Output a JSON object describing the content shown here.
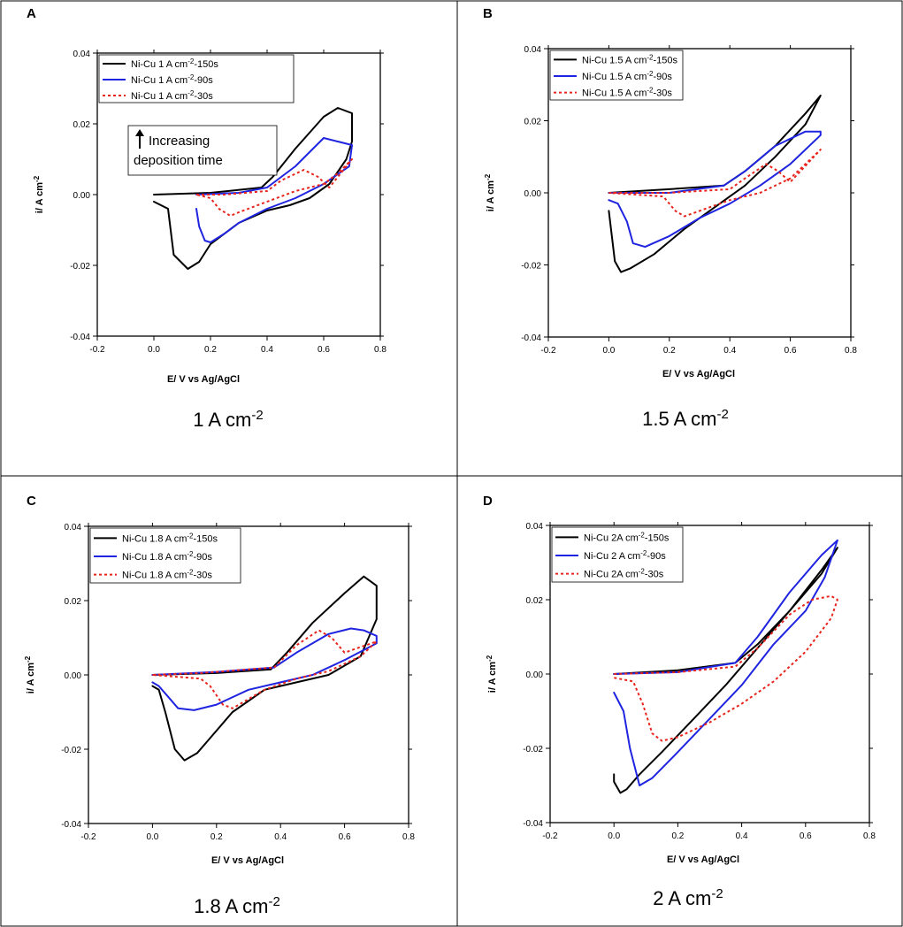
{
  "figure": {
    "cut_text": ""
  },
  "chart_data": [
    {
      "panel_letter": "A",
      "type": "line",
      "caption": "1 A cm",
      "caption_sup": "-2",
      "title": "",
      "xlabel": "E/ V vs Ag/AgCl",
      "ylabel": "i/ A cm",
      "ylabel_sup": "-2",
      "xlim": [
        -0.2,
        0.8
      ],
      "ylim": [
        -0.04,
        0.04
      ],
      "xticks": [
        "-0.2",
        "0.0",
        "0.2",
        "0.4",
        "0.6",
        "0.8"
      ],
      "yticks": [
        "-0.04",
        "-0.02",
        "0.00",
        "0.02",
        "0.04"
      ],
      "grid": false,
      "legend_position": "top-left",
      "annotation": {
        "line1": "Increasing",
        "line2": "deposition time"
      },
      "series": [
        {
          "name": "Ni-Cu 1 A cm-2-150s",
          "legend_pre": "Ni-Cu 1 A cm",
          "legend_sup": "-2",
          "legend_post": "-150s",
          "color": "#000000",
          "style": "solid",
          "x": [
            0.0,
            0.2,
            0.38,
            0.42,
            0.5,
            0.6,
            0.65,
            0.7,
            0.7,
            0.68,
            0.62,
            0.55,
            0.48,
            0.4,
            0.3,
            0.2,
            0.16,
            0.12,
            0.07,
            0.05,
            0.0
          ],
          "y": [
            0.0,
            0.0005,
            0.002,
            0.005,
            0.013,
            0.022,
            0.0245,
            0.023,
            0.015,
            0.01,
            0.003,
            -0.001,
            -0.003,
            -0.0045,
            -0.008,
            -0.014,
            -0.019,
            -0.021,
            -0.017,
            -0.004,
            -0.002
          ]
        },
        {
          "name": "Ni-Cu 1 A cm-2-90s",
          "legend_pre": "Ni-Cu 1 A cm",
          "legend_sup": "-2",
          "legend_post": "-90s",
          "color": "#1f24e0",
          "style": "solid",
          "x": [
            0.15,
            0.3,
            0.4,
            0.5,
            0.6,
            0.65,
            0.7,
            0.69,
            0.6,
            0.5,
            0.4,
            0.3,
            0.25,
            0.2,
            0.18,
            0.16,
            0.15
          ],
          "y": [
            0.0,
            0.0005,
            0.002,
            0.008,
            0.016,
            0.015,
            0.014,
            0.008,
            0.003,
            -0.001,
            -0.004,
            -0.008,
            -0.011,
            -0.0135,
            -0.013,
            -0.009,
            -0.004
          ]
        },
        {
          "name": "Ni-Cu 1 A cm-2-30s",
          "legend_pre": "Ni-Cu 1 A cm",
          "legend_sup": "-2",
          "legend_post": "-30s",
          "color": "#e8251d",
          "style": "dotted",
          "x": [
            0.15,
            0.25,
            0.4,
            0.45,
            0.53,
            0.58,
            0.62,
            0.7,
            0.65,
            0.6,
            0.5,
            0.4,
            0.3,
            0.27,
            0.23,
            0.2,
            0.15
          ],
          "y": [
            0.0,
            0.0,
            0.001,
            0.004,
            0.007,
            0.005,
            0.002,
            0.01,
            0.006,
            0.003,
            0.001,
            -0.002,
            -0.005,
            -0.006,
            -0.004,
            -0.001,
            0.0
          ]
        }
      ]
    },
    {
      "panel_letter": "B",
      "type": "line",
      "caption": "1.5 A cm",
      "caption_sup": "-2",
      "title": "",
      "xlabel": "E/ V vs Ag/AgCl",
      "ylabel": "i/ A cm",
      "ylabel_sup": "-2",
      "xlim": [
        -0.2,
        0.8
      ],
      "ylim": [
        -0.04,
        0.04
      ],
      "xticks": [
        "-0.2",
        "0.0",
        "0.2",
        "0.4",
        "0.6",
        "0.8"
      ],
      "yticks": [
        "-0.04",
        "-0.02",
        "0.00",
        "0.02",
        "0.04"
      ],
      "grid": false,
      "legend_position": "top-left",
      "series": [
        {
          "name": "Ni-Cu 1.5 A cm-2-150s",
          "legend_pre": "Ni-Cu 1.5 A cm",
          "legend_sup": "-2",
          "legend_post": "-150s",
          "color": "#000000",
          "style": "solid",
          "x": [
            0.0,
            0.2,
            0.38,
            0.45,
            0.55,
            0.65,
            0.7,
            0.65,
            0.55,
            0.45,
            0.35,
            0.25,
            0.15,
            0.07,
            0.04,
            0.02,
            0.01,
            0.0
          ],
          "y": [
            0.0,
            0.001,
            0.002,
            0.006,
            0.013,
            0.022,
            0.027,
            0.019,
            0.01,
            0.002,
            -0.004,
            -0.01,
            -0.017,
            -0.021,
            -0.022,
            -0.019,
            -0.012,
            -0.005
          ]
        },
        {
          "name": "Ni-Cu 1.5 A cm-2-90s",
          "legend_pre": "Ni-Cu 1.5 A cm",
          "legend_sup": "-2",
          "legend_post": "-90s",
          "color": "#1f24e0",
          "style": "solid",
          "x": [
            0.0,
            0.2,
            0.38,
            0.45,
            0.55,
            0.65,
            0.7,
            0.7,
            0.6,
            0.5,
            0.4,
            0.3,
            0.2,
            0.12,
            0.08,
            0.06,
            0.03,
            0.0
          ],
          "y": [
            0.0,
            0.0,
            0.002,
            0.006,
            0.013,
            0.017,
            0.017,
            0.016,
            0.008,
            0.002,
            -0.003,
            -0.007,
            -0.012,
            -0.015,
            -0.014,
            -0.008,
            -0.003,
            -0.002
          ]
        },
        {
          "name": "Ni-Cu 1.5 A cm-2-30s",
          "legend_pre": "Ni-Cu 1.5 A cm",
          "legend_sup": "-2",
          "legend_post": "-30s",
          "color": "#e8251d",
          "style": "dotted",
          "x": [
            0.0,
            0.2,
            0.4,
            0.45,
            0.52,
            0.56,
            0.6,
            0.7,
            0.65,
            0.6,
            0.5,
            0.4,
            0.3,
            0.25,
            0.22,
            0.18,
            0.0
          ],
          "y": [
            0.0,
            0.0,
            0.001,
            0.004,
            0.008,
            0.006,
            0.003,
            0.012,
            0.008,
            0.004,
            0.0,
            -0.002,
            -0.005,
            -0.0065,
            -0.005,
            -0.001,
            0.0
          ]
        }
      ]
    },
    {
      "panel_letter": "C",
      "type": "line",
      "caption": "1.8 A cm",
      "caption_sup": "-2",
      "title": "",
      "xlabel": "E/ V vs Ag/AgCl",
      "ylabel": "i/ A cm",
      "ylabel_sup": "-2",
      "xlim": [
        -0.2,
        0.8
      ],
      "ylim": [
        -0.04,
        0.04
      ],
      "xticks": [
        "-0.2",
        "0.0",
        "0.2",
        "0.4",
        "0.6",
        "0.8"
      ],
      "yticks": [
        "-0.04",
        "-0.02",
        "0.00",
        "0.02",
        "0.04"
      ],
      "grid": false,
      "legend_position": "top-left",
      "series": [
        {
          "name": "Ni-Cu 1.8 A cm-2-150s",
          "legend_pre": "Ni-Cu 1.8 A cm",
          "legend_sup": "-2",
          "legend_post": "-150s",
          "color": "#000000",
          "style": "solid",
          "x": [
            0.0,
            0.2,
            0.37,
            0.42,
            0.5,
            0.6,
            0.66,
            0.7,
            0.7,
            0.65,
            0.55,
            0.45,
            0.35,
            0.25,
            0.18,
            0.14,
            0.1,
            0.07,
            0.04,
            0.02,
            0.0
          ],
          "y": [
            0.0,
            0.0005,
            0.0015,
            0.006,
            0.014,
            0.022,
            0.0265,
            0.024,
            0.015,
            0.005,
            0.0,
            -0.002,
            -0.004,
            -0.01,
            -0.017,
            -0.021,
            -0.023,
            -0.02,
            -0.01,
            -0.004,
            -0.003
          ]
        },
        {
          "name": "Ni-Cu 1.8 A cm-2-90s",
          "legend_pre": "Ni-Cu 1.8 A cm",
          "legend_sup": "-2",
          "legend_post": "-90s",
          "color": "#1f24e0",
          "style": "solid",
          "x": [
            0.0,
            0.2,
            0.38,
            0.45,
            0.55,
            0.62,
            0.66,
            0.7,
            0.7,
            0.6,
            0.5,
            0.4,
            0.3,
            0.2,
            0.13,
            0.08,
            0.05,
            0.02,
            0.0
          ],
          "y": [
            0.0,
            0.0008,
            0.002,
            0.006,
            0.011,
            0.0125,
            0.012,
            0.0105,
            0.0085,
            0.004,
            0.0,
            -0.002,
            -0.004,
            -0.008,
            -0.0095,
            -0.009,
            -0.006,
            -0.003,
            -0.002
          ]
        },
        {
          "name": "Ni-Cu 1.8 A cm-2-30s",
          "legend_pre": "Ni-Cu 1.8 A cm",
          "legend_sup": "-2",
          "legend_post": "-30s",
          "color": "#e8251d",
          "style": "dotted",
          "x": [
            0.0,
            0.15,
            0.38,
            0.45,
            0.52,
            0.56,
            0.6,
            0.7,
            0.65,
            0.55,
            0.45,
            0.35,
            0.25,
            0.22,
            0.18,
            0.15,
            0.0
          ],
          "y": [
            0.0,
            0.0005,
            0.002,
            0.008,
            0.012,
            0.01,
            0.006,
            0.009,
            0.005,
            0.001,
            -0.001,
            -0.004,
            -0.009,
            -0.008,
            -0.003,
            -0.001,
            0.0
          ]
        }
      ]
    },
    {
      "panel_letter": "D",
      "type": "line",
      "caption": "2 A cm",
      "caption_sup": "-2",
      "title": "",
      "xlabel": "E/ V vs Ag/AgCl",
      "ylabel": "i/ A cm",
      "ylabel_sup": "-2",
      "xlim": [
        -0.2,
        0.8
      ],
      "ylim": [
        -0.04,
        0.04
      ],
      "xticks": [
        "-0.2",
        "0.0",
        "0.2",
        "0.4",
        "0.6",
        "0.8"
      ],
      "yticks": [
        "-0.04",
        "-0.02",
        "0.00",
        "0.02",
        "0.04"
      ],
      "grid": false,
      "legend_position": "top-left",
      "series": [
        {
          "name": "Ni-Cu 2A cm-2-150s",
          "legend_pre": "Ni-Cu 2A cm",
          "legend_sup": "-2",
          "legend_post": "-150s",
          "color": "#000000",
          "style": "solid",
          "x": [
            0.0,
            0.2,
            0.38,
            0.45,
            0.55,
            0.65,
            0.7,
            0.65,
            0.55,
            0.45,
            0.35,
            0.25,
            0.15,
            0.08,
            0.04,
            0.02,
            0.0,
            0.0
          ],
          "y": [
            0.0,
            0.001,
            0.003,
            0.008,
            0.017,
            0.028,
            0.034,
            0.027,
            0.017,
            0.007,
            -0.003,
            -0.012,
            -0.021,
            -0.027,
            -0.031,
            -0.032,
            -0.029,
            -0.027
          ]
        },
        {
          "name": "Ni-Cu 2 A cm-2-90s",
          "legend_pre": "Ni-Cu 2 A cm",
          "legend_sup": "-2",
          "legend_post": "-90s",
          "color": "#1f24e0",
          "style": "solid",
          "x": [
            0.0,
            0.2,
            0.38,
            0.45,
            0.55,
            0.65,
            0.7,
            0.66,
            0.6,
            0.5,
            0.4,
            0.3,
            0.2,
            0.12,
            0.08,
            0.05,
            0.03,
            0.0
          ],
          "y": [
            0.0,
            0.0005,
            0.003,
            0.01,
            0.022,
            0.032,
            0.036,
            0.026,
            0.017,
            0.008,
            -0.003,
            -0.012,
            -0.021,
            -0.028,
            -0.03,
            -0.02,
            -0.01,
            -0.005
          ]
        },
        {
          "name": "Ni-Cu 2A cm-2-30s",
          "legend_pre": "Ni-Cu 2A cm",
          "legend_sup": "-2",
          "legend_post": "-30s",
          "color": "#e8251d",
          "style": "dotted",
          "x": [
            0.0,
            0.2,
            0.38,
            0.45,
            0.55,
            0.62,
            0.68,
            0.7,
            0.68,
            0.6,
            0.5,
            0.4,
            0.3,
            0.2,
            0.15,
            0.12,
            0.09,
            0.06,
            0.0
          ],
          "y": [
            0.0,
            0.0005,
            0.002,
            0.007,
            0.016,
            0.02,
            0.021,
            0.02,
            0.015,
            0.006,
            -0.002,
            -0.008,
            -0.013,
            -0.017,
            -0.018,
            -0.016,
            -0.008,
            -0.002,
            -0.001
          ]
        }
      ]
    }
  ]
}
